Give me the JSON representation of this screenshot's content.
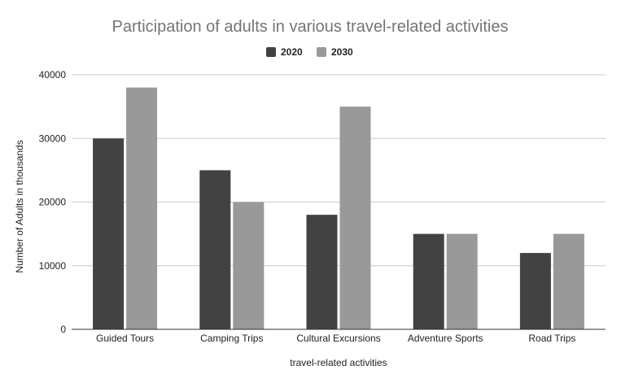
{
  "chart_data": {
    "type": "bar",
    "title": "Participation of adults in various travel-related activities",
    "xlabel": "travel-related activities",
    "ylabel": "Number of Adults in thousands",
    "categories": [
      "Guided Tours",
      "Camping Trips",
      "Cultural Excursions",
      "Adventure Sports",
      "Road Trips"
    ],
    "series": [
      {
        "name": "2020",
        "values": [
          30000,
          25000,
          18000,
          15000,
          12000
        ],
        "color": "#424242"
      },
      {
        "name": "2030",
        "values": [
          38000,
          20000,
          35000,
          15000,
          15000
        ],
        "color": "#999999"
      }
    ],
    "ylim": [
      0,
      40000
    ],
    "yticks": [
      "0",
      "10000",
      "20000",
      "30000",
      "40000"
    ],
    "grid": true,
    "legend_position": "top-center"
  }
}
